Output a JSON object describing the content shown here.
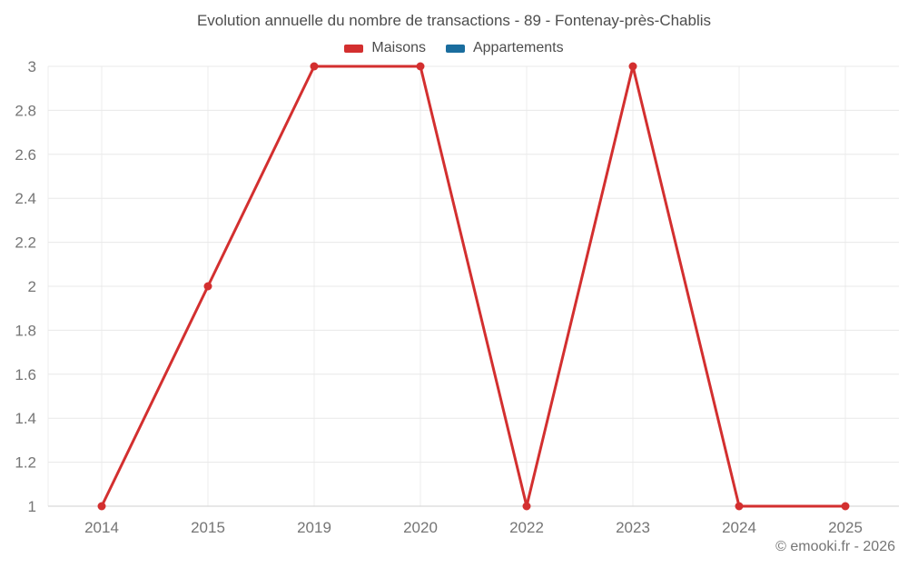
{
  "chart_data": {
    "type": "line",
    "title": "Evolution annuelle du nombre de transactions - 89 - Fontenay-près-Chablis",
    "categories": [
      "2014",
      "2015",
      "2019",
      "2020",
      "2022",
      "2023",
      "2024",
      "2025"
    ],
    "series": [
      {
        "name": "Maisons",
        "color": "#d32f2f",
        "values": [
          1,
          2,
          3,
          3,
          1,
          3,
          1,
          1
        ]
      },
      {
        "name": "Appartements",
        "color": "#1a6d9e",
        "values": []
      }
    ],
    "xlabel": "",
    "ylabel": "",
    "ylim": [
      1,
      3
    ],
    "yticks": [
      "1",
      "1.2",
      "1.4",
      "1.6",
      "1.8",
      "2",
      "2.2",
      "2.4",
      "2.6",
      "2.8",
      "3"
    ],
    "grid": true,
    "legend_position": "top"
  },
  "footer": {
    "copyright": "© emooki.fr - 2026"
  },
  "colors": {
    "background": "#ffffff",
    "grid_h": "#e8e8e8",
    "grid_v": "#eeeeee",
    "axis": "#cfcfcf",
    "text_title": "#4d4d4d",
    "text_muted": "#757575"
  }
}
